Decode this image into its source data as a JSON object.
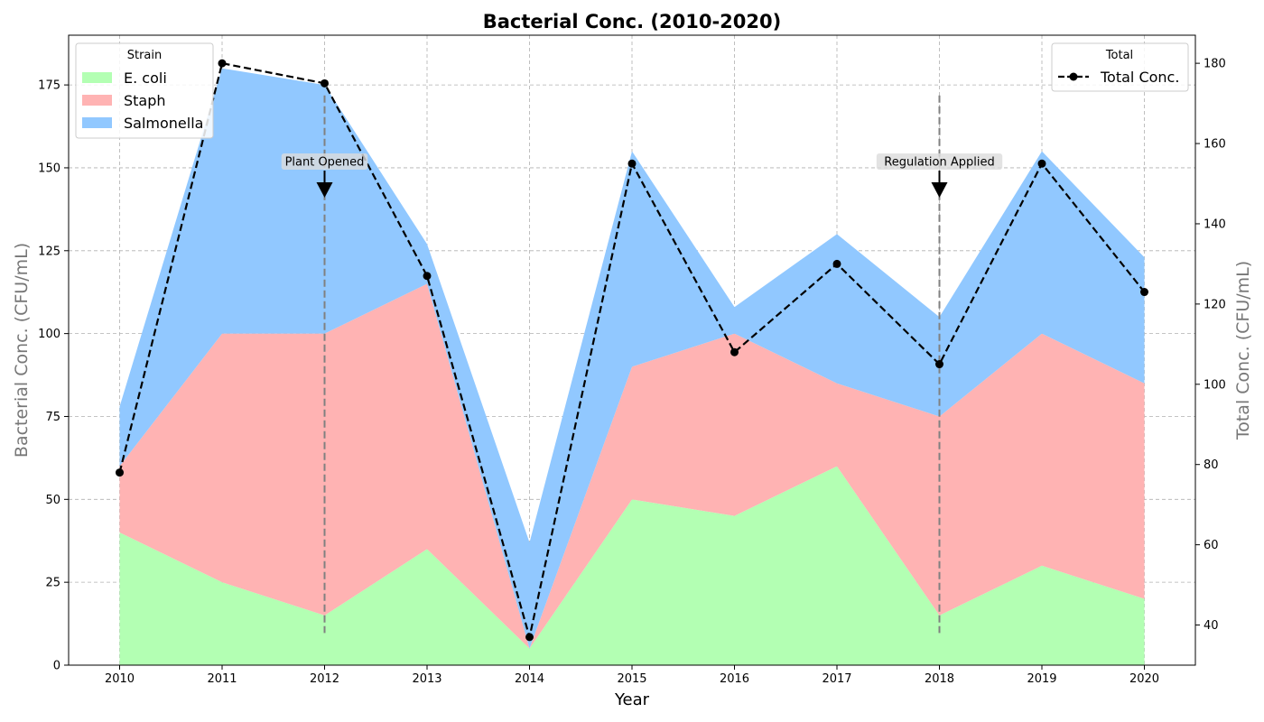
{
  "chart_data": {
    "type": "area",
    "title": "Bacterial Conc. (2010-2020)",
    "xlabel": "Year",
    "ylabel_left": "Bacterial Conc. (CFU/mL)",
    "ylabel_right": "Total Conc. (CFU/mL)",
    "categories": [
      "2010",
      "2011",
      "2012",
      "2013",
      "2014",
      "2015",
      "2016",
      "2017",
      "2018",
      "2019",
      "2020"
    ],
    "stacked": true,
    "series": [
      {
        "name": "E. coli",
        "color": "#b3ffb3",
        "values": [
          40,
          25,
          15,
          35,
          5,
          50,
          45,
          60,
          15,
          30,
          20
        ]
      },
      {
        "name": "Staph",
        "color": "#ffb3b3",
        "values": [
          20,
          75,
          85,
          80,
          0,
          40,
          55,
          25,
          60,
          70,
          65
        ]
      },
      {
        "name": "Salmonella",
        "color": "#91c8ff",
        "values": [
          18,
          80,
          75,
          12,
          32,
          65,
          8,
          45,
          30,
          55,
          38
        ]
      }
    ],
    "total_series": {
      "name": "Total Conc.",
      "color": "#000000",
      "style": "dashed",
      "marker": "circle",
      "values": [
        78,
        180,
        175,
        127,
        37,
        155,
        108,
        130,
        105,
        155,
        123
      ]
    },
    "ylim_left": [
      0,
      190
    ],
    "ylim_right": [
      30,
      187
    ],
    "yticks_left": [
      0,
      25,
      50,
      75,
      100,
      125,
      150,
      175
    ],
    "yticks_right": [
      40,
      60,
      80,
      100,
      120,
      140,
      160,
      180
    ],
    "legend_left": {
      "title": "Strain",
      "placement": "top-left"
    },
    "legend_right": {
      "title": "Total",
      "placement": "top-right"
    },
    "annotations": [
      {
        "label": "Plant Opened",
        "x": "2012"
      },
      {
        "label": "Regulation Applied",
        "x": "2018"
      }
    ],
    "grid": true
  }
}
